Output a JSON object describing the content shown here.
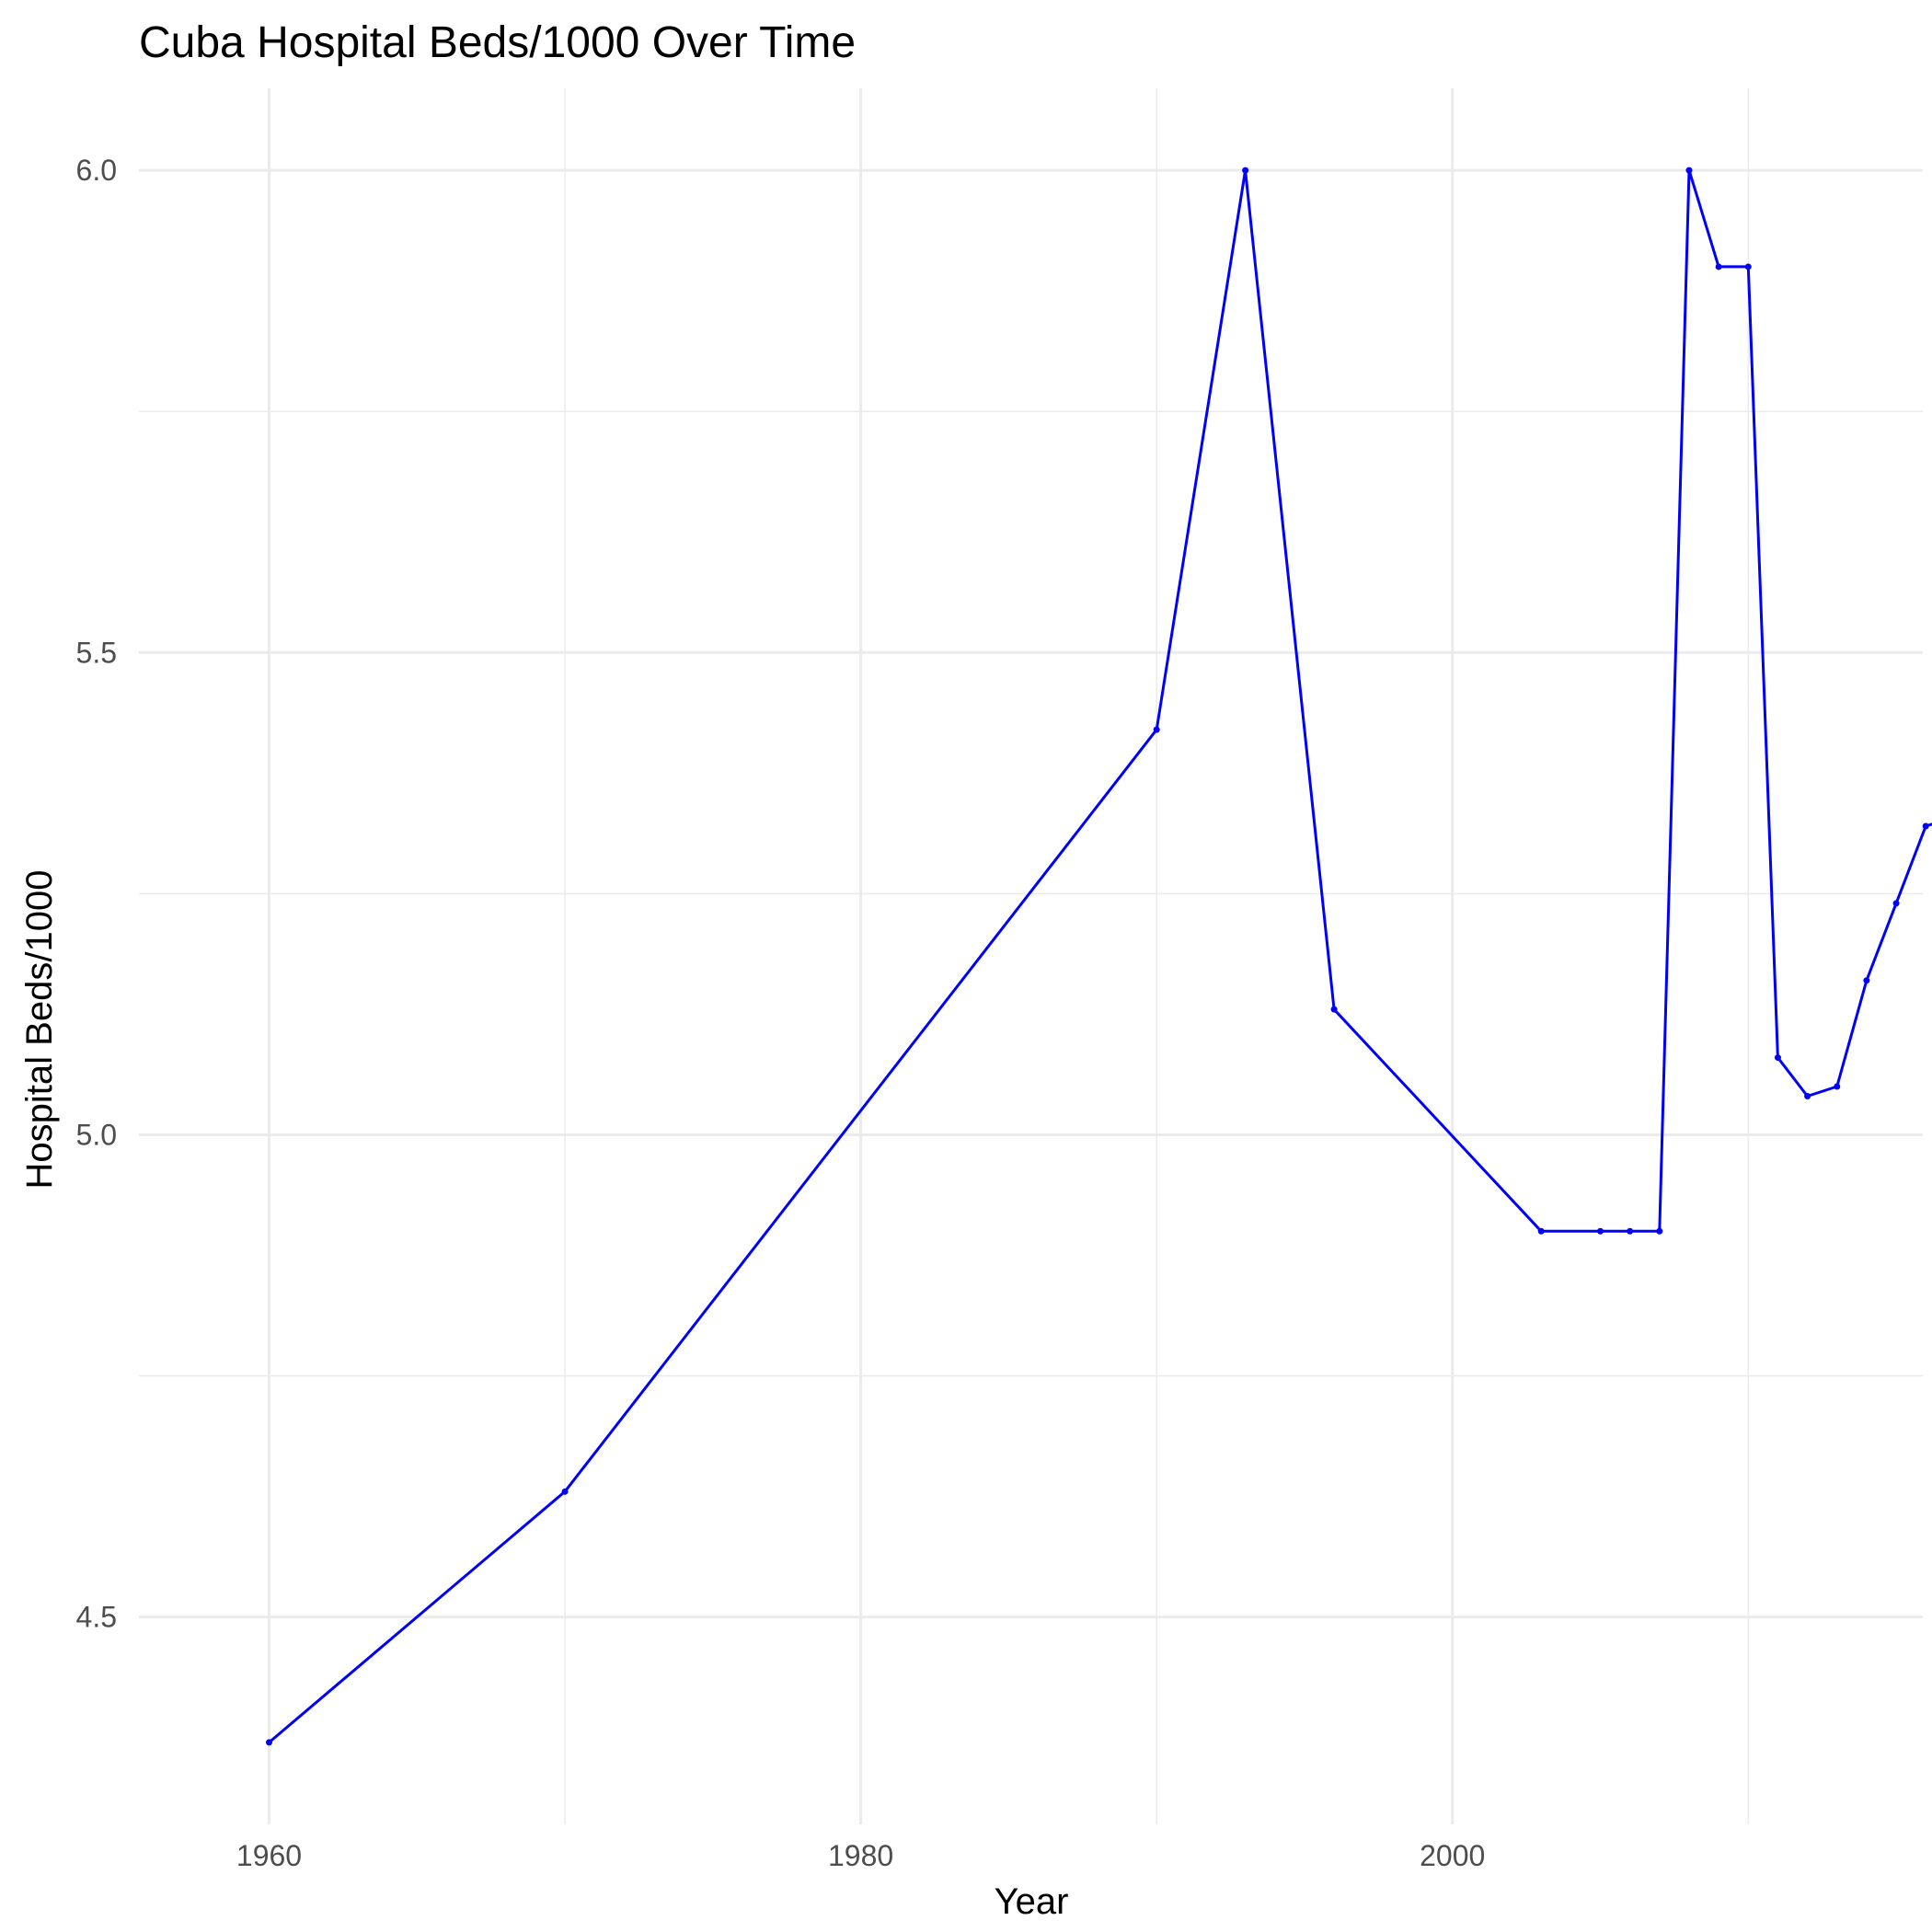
{
  "chart_data": {
    "type": "line",
    "title": "Cuba Hospital Beds/1000 Over Time",
    "xlabel": "Year",
    "ylabel": "Hospital Beds/1000",
    "xlim": [
      1955.6,
      2015.9
    ],
    "ylim": [
      4.285,
      6.085
    ],
    "x_ticks": [
      1960,
      1980,
      2000
    ],
    "x_minor_ticks": [
      1970,
      1990,
      2010
    ],
    "y_ticks": [
      4.5,
      5.0,
      5.5,
      6.0
    ],
    "y_minor_ticks": [
      4.75,
      5.25,
      5.75
    ],
    "x_tick_labels": [
      "1960",
      "1980",
      "2000"
    ],
    "y_tick_labels": [
      "4.5",
      "5.0",
      "5.5",
      "6.0"
    ],
    "grid": true,
    "line_color": "#0000ff",
    "series": [
      {
        "x": [
          1960,
          1970,
          1990,
          1993,
          1996,
          2003,
          2005,
          2006,
          2007,
          2008,
          2009,
          2010,
          2011,
          2012,
          2013,
          2014,
          2015,
          2016,
          2017
        ],
        "y": [
          4.37,
          4.63,
          5.42,
          6.0,
          5.13,
          4.9,
          4.9,
          4.9,
          4.9,
          6.0,
          5.9,
          5.9,
          5.08,
          5.04,
          5.05,
          5.16,
          5.24,
          5.32,
          5.33
        ]
      }
    ]
  }
}
